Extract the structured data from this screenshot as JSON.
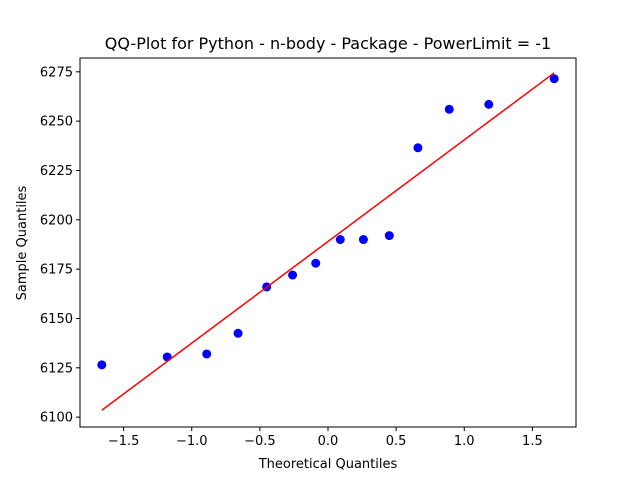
{
  "chart_data": {
    "type": "scatter",
    "title": "QQ-Plot for Python - n-body - Package - PowerLimit = -1",
    "xlabel": "Theoretical Quantiles",
    "ylabel": "Sample Quantiles",
    "xlim": [
      -1.82,
      1.82
    ],
    "ylim": [
      6095,
      6282
    ],
    "x_ticks": [
      -1.5,
      -1.0,
      -0.5,
      0.0,
      0.5,
      1.0,
      1.5
    ],
    "x_tick_labels": [
      "−1.5",
      "−1.0",
      "−0.5",
      "0.0",
      "0.5",
      "1.0",
      "1.5"
    ],
    "y_ticks": [
      6100,
      6125,
      6150,
      6175,
      6200,
      6225,
      6250,
      6275
    ],
    "y_tick_labels": [
      "6100",
      "6125",
      "6150",
      "6175",
      "6200",
      "6225",
      "6250",
      "6275"
    ],
    "grid": false,
    "points": {
      "color": "#0000ff",
      "x": [
        -1.66,
        -1.18,
        -0.89,
        -0.66,
        -0.45,
        -0.26,
        -0.09,
        0.09,
        0.26,
        0.45,
        0.66,
        0.89,
        1.18,
        1.66
      ],
      "y": [
        6126.5,
        6130.5,
        6132,
        6142.5,
        6166,
        6172,
        6178,
        6190,
        6190,
        6192,
        6236.5,
        6256,
        6258.5,
        6271.5
      ]
    },
    "reference_line": {
      "color": "#ff0000",
      "x": [
        -1.66,
        1.66
      ],
      "y": [
        6103.5,
        6274.5
      ]
    }
  }
}
